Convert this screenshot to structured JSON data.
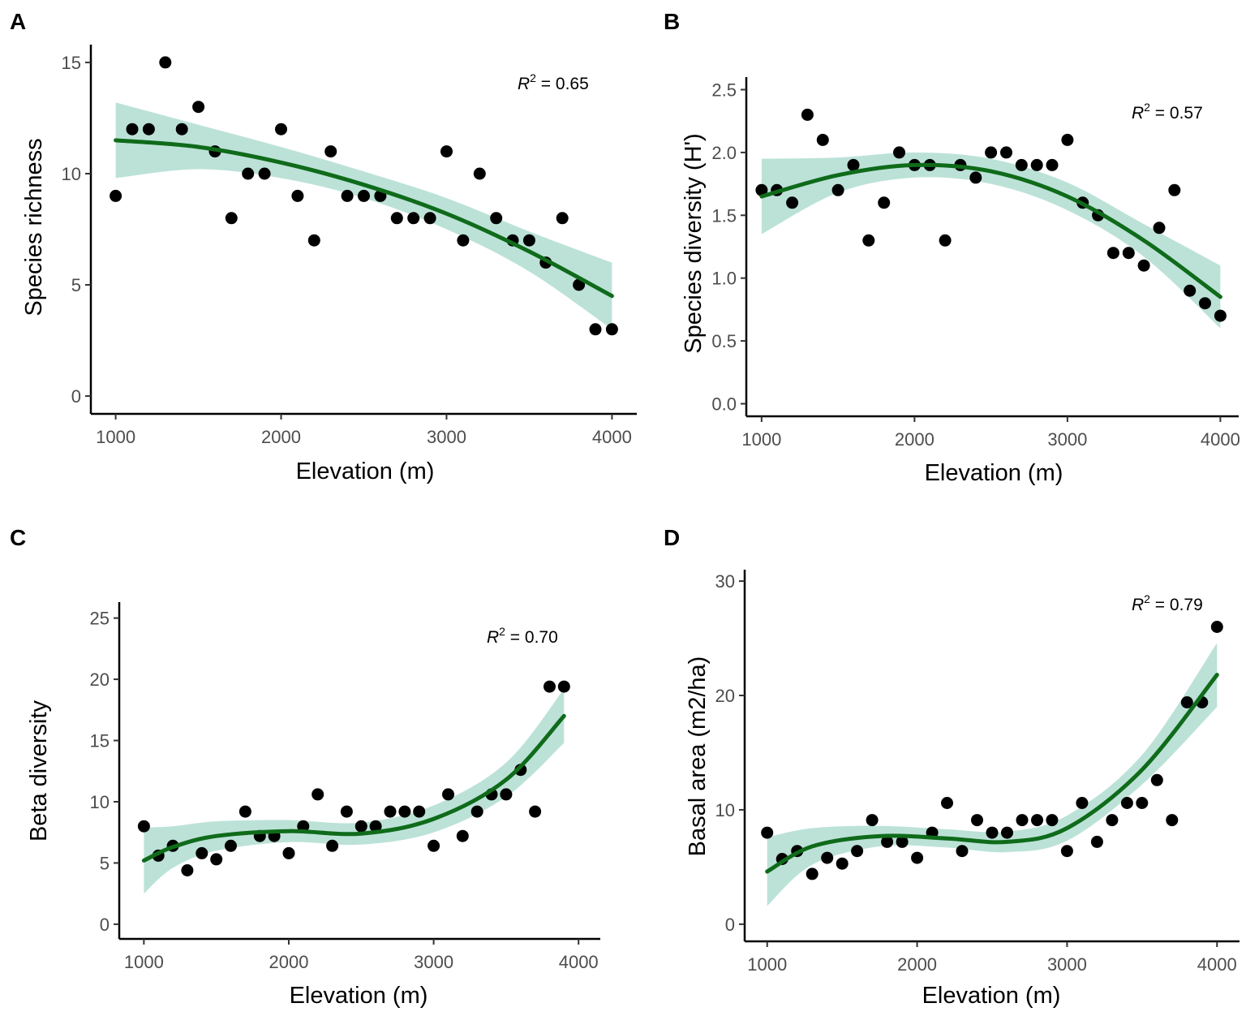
{
  "chart_data": [
    {
      "panel": "A",
      "type": "scatter",
      "xlabel": "Elevation (m)",
      "ylabel": "Species richness",
      "xlim": [
        850,
        4150
      ],
      "ylim": [
        -0.8,
        15.8
      ],
      "xticks": [
        1000,
        2000,
        3000,
        4000
      ],
      "yticks": [
        0,
        5,
        10,
        15
      ],
      "annotation": {
        "text": "R",
        "sup": "2",
        "value": " = 0.65"
      },
      "points": [
        {
          "x": 1000,
          "y": 9
        },
        {
          "x": 1100,
          "y": 12
        },
        {
          "x": 1200,
          "y": 12
        },
        {
          "x": 1300,
          "y": 15
        },
        {
          "x": 1400,
          "y": 12
        },
        {
          "x": 1500,
          "y": 13
        },
        {
          "x": 1600,
          "y": 11
        },
        {
          "x": 1700,
          "y": 8
        },
        {
          "x": 1800,
          "y": 10
        },
        {
          "x": 1900,
          "y": 10
        },
        {
          "x": 2000,
          "y": 12
        },
        {
          "x": 2100,
          "y": 9
        },
        {
          "x": 2200,
          "y": 7
        },
        {
          "x": 2300,
          "y": 11
        },
        {
          "x": 2400,
          "y": 9
        },
        {
          "x": 2500,
          "y": 9
        },
        {
          "x": 2600,
          "y": 9
        },
        {
          "x": 2700,
          "y": 8
        },
        {
          "x": 2800,
          "y": 8
        },
        {
          "x": 2900,
          "y": 8
        },
        {
          "x": 3000,
          "y": 11
        },
        {
          "x": 3100,
          "y": 7
        },
        {
          "x": 3200,
          "y": 10
        },
        {
          "x": 3300,
          "y": 8
        },
        {
          "x": 3400,
          "y": 7
        },
        {
          "x": 3500,
          "y": 7
        },
        {
          "x": 3600,
          "y": 6
        },
        {
          "x": 3700,
          "y": 8
        },
        {
          "x": 3800,
          "y": 5
        },
        {
          "x": 3900,
          "y": 3
        },
        {
          "x": 4000,
          "y": 3
        }
      ],
      "fit": [
        {
          "x": 1000,
          "y": 11.5,
          "lo": 9.8,
          "hi": 13.2
        },
        {
          "x": 1500,
          "y": 11.2,
          "lo": 10.2,
          "hi": 12.2
        },
        {
          "x": 2000,
          "y": 10.5,
          "lo": 9.8,
          "hi": 11.2
        },
        {
          "x": 2500,
          "y": 9.5,
          "lo": 8.9,
          "hi": 10.1
        },
        {
          "x": 3000,
          "y": 8.2,
          "lo": 7.5,
          "hi": 8.9
        },
        {
          "x": 3500,
          "y": 6.5,
          "lo": 5.6,
          "hi": 7.4
        },
        {
          "x": 4000,
          "y": 4.5,
          "lo": 3.0,
          "hi": 6.0
        }
      ]
    },
    {
      "panel": "B",
      "type": "scatter",
      "xlabel": "Elevation (m)",
      "ylabel": "Species diversity (H')",
      "xlim": [
        900,
        4120
      ],
      "ylim": [
        -0.1,
        2.6
      ],
      "xticks": [
        1000,
        2000,
        3000,
        4000
      ],
      "yticks": [
        0.0,
        0.5,
        1.0,
        1.5,
        2.0,
        2.5
      ],
      "ytick_labels": [
        "0.0",
        "0.5",
        "1.0",
        "1.5",
        "2.0",
        "2.5"
      ],
      "annotation": {
        "text": "R",
        "sup": "2",
        "value": " = 0.57"
      },
      "points": [
        {
          "x": 1000,
          "y": 1.7
        },
        {
          "x": 1100,
          "y": 1.7
        },
        {
          "x": 1200,
          "y": 1.6
        },
        {
          "x": 1300,
          "y": 2.3
        },
        {
          "x": 1400,
          "y": 2.1
        },
        {
          "x": 1500,
          "y": 1.7
        },
        {
          "x": 1600,
          "y": 1.9
        },
        {
          "x": 1700,
          "y": 1.3
        },
        {
          "x": 1800,
          "y": 1.6
        },
        {
          "x": 1900,
          "y": 2.0
        },
        {
          "x": 2000,
          "y": 1.9
        },
        {
          "x": 2100,
          "y": 1.9
        },
        {
          "x": 2200,
          "y": 1.3
        },
        {
          "x": 2300,
          "y": 1.9
        },
        {
          "x": 2400,
          "y": 1.8
        },
        {
          "x": 2500,
          "y": 2.0
        },
        {
          "x": 2600,
          "y": 2.0
        },
        {
          "x": 2700,
          "y": 1.9
        },
        {
          "x": 2800,
          "y": 1.9
        },
        {
          "x": 2900,
          "y": 1.9
        },
        {
          "x": 3000,
          "y": 2.1
        },
        {
          "x": 3100,
          "y": 1.6
        },
        {
          "x": 3200,
          "y": 1.5
        },
        {
          "x": 3300,
          "y": 1.2
        },
        {
          "x": 3400,
          "y": 1.2
        },
        {
          "x": 3500,
          "y": 1.1
        },
        {
          "x": 3600,
          "y": 1.4
        },
        {
          "x": 3700,
          "y": 1.7
        },
        {
          "x": 3800,
          "y": 0.9
        },
        {
          "x": 3900,
          "y": 0.8
        },
        {
          "x": 4000,
          "y": 0.7
        }
      ],
      "fit": [
        {
          "x": 1000,
          "y": 1.65,
          "lo": 1.35,
          "hi": 1.95
        },
        {
          "x": 1500,
          "y": 1.82,
          "lo": 1.68,
          "hi": 1.96
        },
        {
          "x": 2000,
          "y": 1.9,
          "lo": 1.8,
          "hi": 2.0
        },
        {
          "x": 2500,
          "y": 1.85,
          "lo": 1.75,
          "hi": 1.95
        },
        {
          "x": 3000,
          "y": 1.65,
          "lo": 1.54,
          "hi": 1.76
        },
        {
          "x": 3500,
          "y": 1.3,
          "lo": 1.17,
          "hi": 1.43
        },
        {
          "x": 4000,
          "y": 0.85,
          "lo": 0.6,
          "hi": 1.1
        }
      ]
    },
    {
      "panel": "C",
      "type": "scatter",
      "xlabel": "Elevation (m)",
      "ylabel": "Beta diversity",
      "xlim": [
        830,
        4150
      ],
      "ylim": [
        -1.2,
        26.3
      ],
      "xticks": [
        1000,
        2000,
        3000,
        4000
      ],
      "yticks": [
        0,
        5,
        10,
        15,
        20,
        25
      ],
      "annotation": {
        "text": "R",
        "sup": "2",
        "value": " = 0.70"
      },
      "points": [
        {
          "x": 1000,
          "y": 8
        },
        {
          "x": 1100,
          "y": 5.6
        },
        {
          "x": 1200,
          "y": 6.4
        },
        {
          "x": 1300,
          "y": 4.4
        },
        {
          "x": 1400,
          "y": 5.8
        },
        {
          "x": 1500,
          "y": 5.3
        },
        {
          "x": 1600,
          "y": 6.4
        },
        {
          "x": 1700,
          "y": 9.2
        },
        {
          "x": 1800,
          "y": 7.2
        },
        {
          "x": 1900,
          "y": 7.2
        },
        {
          "x": 2000,
          "y": 5.8
        },
        {
          "x": 2100,
          "y": 8
        },
        {
          "x": 2200,
          "y": 10.6
        },
        {
          "x": 2300,
          "y": 6.4
        },
        {
          "x": 2400,
          "y": 9.2
        },
        {
          "x": 2500,
          "y": 8
        },
        {
          "x": 2600,
          "y": 8
        },
        {
          "x": 2700,
          "y": 9.2
        },
        {
          "x": 2800,
          "y": 9.2
        },
        {
          "x": 2900,
          "y": 9.2
        },
        {
          "x": 3000,
          "y": 6.4
        },
        {
          "x": 3100,
          "y": 10.6
        },
        {
          "x": 3200,
          "y": 7.2
        },
        {
          "x": 3300,
          "y": 9.2
        },
        {
          "x": 3400,
          "y": 10.6
        },
        {
          "x": 3500,
          "y": 10.6
        },
        {
          "x": 3600,
          "y": 12.6
        },
        {
          "x": 3700,
          "y": 9.2
        },
        {
          "x": 3800,
          "y": 19.4
        },
        {
          "x": 3900,
          "y": 19.4
        }
      ],
      "fit": [
        {
          "x": 1000,
          "y": 5.2,
          "lo": 2.5,
          "hi": 7.9
        },
        {
          "x": 1200,
          "y": 6.3,
          "lo": 4.6,
          "hi": 8.0
        },
        {
          "x": 1500,
          "y": 7.2,
          "lo": 6.0,
          "hi": 8.4
        },
        {
          "x": 2000,
          "y": 7.6,
          "lo": 6.7,
          "hi": 8.5
        },
        {
          "x": 2500,
          "y": 7.4,
          "lo": 6.5,
          "hi": 8.3
        },
        {
          "x": 3000,
          "y": 8.6,
          "lo": 7.5,
          "hi": 9.7
        },
        {
          "x": 3500,
          "y": 11.8,
          "lo": 10.4,
          "hi": 13.2
        },
        {
          "x": 3900,
          "y": 17.0,
          "lo": 14.8,
          "hi": 19.2
        }
      ]
    },
    {
      "panel": "D",
      "type": "scatter",
      "xlabel": "Elevation (m)",
      "ylabel": "Basal area (m2/ha)",
      "xlim": [
        850,
        4150
      ],
      "ylim": [
        -1.5,
        31
      ],
      "xticks": [
        1000,
        2000,
        3000,
        4000
      ],
      "yticks": [
        0,
        10,
        20,
        30
      ],
      "annotation": {
        "text": "R",
        "sup": "2",
        "value": " = 0.79"
      },
      "points": [
        {
          "x": 1000,
          "y": 8
        },
        {
          "x": 1100,
          "y": 5.7
        },
        {
          "x": 1200,
          "y": 6.4
        },
        {
          "x": 1300,
          "y": 4.4
        },
        {
          "x": 1400,
          "y": 5.8
        },
        {
          "x": 1500,
          "y": 5.3
        },
        {
          "x": 1600,
          "y": 6.4
        },
        {
          "x": 1700,
          "y": 9.1
        },
        {
          "x": 1800,
          "y": 7.2
        },
        {
          "x": 1900,
          "y": 7.2
        },
        {
          "x": 2000,
          "y": 5.8
        },
        {
          "x": 2100,
          "y": 8
        },
        {
          "x": 2200,
          "y": 10.6
        },
        {
          "x": 2300,
          "y": 6.4
        },
        {
          "x": 2400,
          "y": 9.1
        },
        {
          "x": 2500,
          "y": 8
        },
        {
          "x": 2600,
          "y": 8
        },
        {
          "x": 2700,
          "y": 9.1
        },
        {
          "x": 2800,
          "y": 9.1
        },
        {
          "x": 2900,
          "y": 9.1
        },
        {
          "x": 3000,
          "y": 6.4
        },
        {
          "x": 3100,
          "y": 10.6
        },
        {
          "x": 3200,
          "y": 7.2
        },
        {
          "x": 3300,
          "y": 9.1
        },
        {
          "x": 3400,
          "y": 10.6
        },
        {
          "x": 3500,
          "y": 10.6
        },
        {
          "x": 3600,
          "y": 12.6
        },
        {
          "x": 3700,
          "y": 9.1
        },
        {
          "x": 3800,
          "y": 19.4
        },
        {
          "x": 3900,
          "y": 19.4
        },
        {
          "x": 4000,
          "y": 26
        }
      ],
      "fit": [
        {
          "x": 1000,
          "y": 4.6,
          "lo": 1.6,
          "hi": 7.6
        },
        {
          "x": 1300,
          "y": 6.8,
          "lo": 5.2,
          "hi": 8.4
        },
        {
          "x": 1750,
          "y": 7.7,
          "lo": 6.8,
          "hi": 8.6
        },
        {
          "x": 2200,
          "y": 7.5,
          "lo": 6.7,
          "hi": 8.3
        },
        {
          "x": 2600,
          "y": 7.2,
          "lo": 6.3,
          "hi": 8.1
        },
        {
          "x": 3000,
          "y": 8.4,
          "lo": 7.3,
          "hi": 9.5
        },
        {
          "x": 3500,
          "y": 13.5,
          "lo": 12.2,
          "hi": 14.8
        },
        {
          "x": 4000,
          "y": 21.8,
          "lo": 19.0,
          "hi": 24.6
        }
      ]
    }
  ],
  "colors": {
    "fit_line": "#0f6b1a",
    "band": "#8fcfbe",
    "point": "#000000"
  }
}
